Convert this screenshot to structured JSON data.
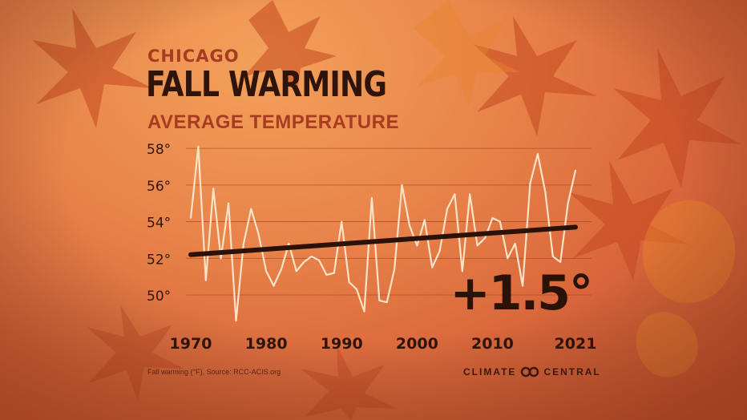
{
  "header": {
    "city": "CHICAGO",
    "title": "FALL WARMING",
    "subtitle": "AVERAGE TEMPERATURE"
  },
  "annotation": "+1.5°",
  "footer": {
    "source": "Fall warming (°F). Source: RCC-ACIS.org",
    "brand_left": "CLIMATE",
    "brand_right": "CENTRAL"
  },
  "colors": {
    "data_line": "#fbe3c8",
    "trend_line": "#2a1208",
    "grid": "#9a3a20",
    "text_dark": "#2e140a",
    "accent": "#a93b20"
  },
  "chart_data": {
    "type": "line",
    "x": [
      1970,
      1971,
      1972,
      1973,
      1974,
      1975,
      1976,
      1977,
      1978,
      1979,
      1980,
      1981,
      1982,
      1983,
      1984,
      1985,
      1986,
      1987,
      1988,
      1989,
      1990,
      1991,
      1992,
      1993,
      1994,
      1995,
      1996,
      1997,
      1998,
      1999,
      2000,
      2001,
      2002,
      2003,
      2004,
      2005,
      2006,
      2007,
      2008,
      2009,
      2010,
      2011,
      2012,
      2013,
      2014,
      2015,
      2016,
      2017,
      2018,
      2019,
      2020,
      2021
    ],
    "y": [
      54.2,
      58.1,
      50.8,
      55.8,
      52.0,
      55.0,
      48.6,
      52.8,
      54.7,
      53.3,
      51.3,
      50.5,
      51.4,
      52.8,
      51.3,
      51.8,
      52.1,
      51.9,
      51.1,
      51.2,
      54.0,
      50.7,
      50.3,
      49.1,
      55.3,
      49.7,
      49.6,
      51.4,
      56.0,
      53.8,
      52.7,
      54.1,
      51.5,
      52.4,
      54.7,
      55.5,
      51.3,
      55.5,
      52.7,
      53.1,
      54.2,
      54.0,
      52.0,
      52.8,
      50.5,
      56.1,
      57.7,
      55.6,
      52.1,
      51.8,
      55.0,
      56.8
    ],
    "trend": {
      "x": [
        1970,
        2021
      ],
      "y": [
        52.2,
        53.7
      ]
    },
    "x_tick_labels": [
      "1970",
      "1980",
      "1990",
      "2000",
      "2010",
      "2021"
    ],
    "y_ticks": [
      50,
      52,
      54,
      56,
      58
    ],
    "y_tick_labels": [
      "50°",
      "52°",
      "54°",
      "56°",
      "58°"
    ],
    "xlim": [
      1970,
      2021
    ],
    "ylim": [
      48.6,
      58.4
    ],
    "grid": true,
    "legend": "none"
  }
}
